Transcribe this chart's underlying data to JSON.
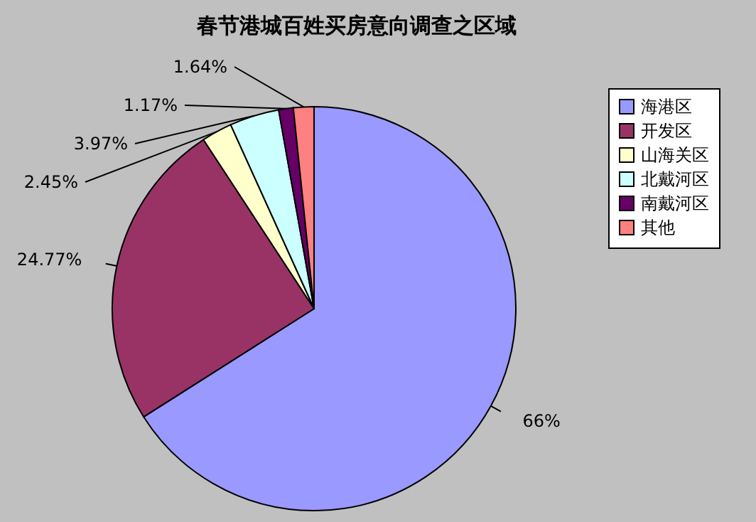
{
  "chart_data": {
    "type": "pie",
    "title": "春节港城百姓买房意向调查之区域",
    "categories": [
      "海港区",
      "开发区",
      "山海关区",
      "北戴河区",
      "南戴河区",
      "其他"
    ],
    "values": [
      66,
      24.77,
      2.45,
      3.97,
      1.17,
      1.64
    ],
    "colors": [
      "#9999ff",
      "#993366",
      "#ffffcc",
      "#ccffff",
      "#660066",
      "#ff8080"
    ],
    "value_labels": [
      "66%",
      "24.77%",
      "2.45%",
      "3.97%",
      "1.17%",
      "1.64%"
    ],
    "legend": "right"
  }
}
